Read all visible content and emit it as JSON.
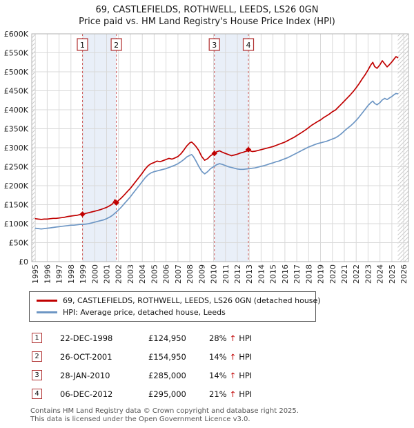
{
  "title": "69, CASTLEFIELDS, ROTHWELL, LEEDS, LS26 0GN",
  "subtitle": "Price paid vs. HM Land Registry's House Price Index (HPI)",
  "chart_data": {
    "type": "line",
    "title": "69, CASTLEFIELDS, ROTHWELL, LEEDS, LS26 0GN  Price paid vs. HPI",
    "unit": "GBP thousands",
    "x_range": [
      1994.7,
      2026.4
    ],
    "y_range": [
      0,
      600
    ],
    "x_ticks": [
      1995,
      1996,
      1997,
      1998,
      1999,
      2000,
      2001,
      2002,
      2003,
      2004,
      2005,
      2006,
      2007,
      2008,
      2009,
      2010,
      2011,
      2012,
      2013,
      2014,
      2015,
      2016,
      2017,
      2018,
      2019,
      2020,
      2021,
      2022,
      2023,
      2024,
      2025,
      2026
    ],
    "y_ticks": [
      0,
      50,
      100,
      150,
      200,
      250,
      300,
      350,
      400,
      450,
      500,
      550,
      600
    ],
    "y_tick_labels": [
      "£0",
      "£50K",
      "£100K",
      "£150K",
      "£200K",
      "£250K",
      "£300K",
      "£350K",
      "£400K",
      "£450K",
      "£500K",
      "£550K",
      "£600K"
    ],
    "grid": true,
    "legend_position": "bottom",
    "hatch_regions": [
      [
        1994.7,
        1995.0
      ],
      [
        2025.5,
        2026.4
      ]
    ],
    "bands": [
      [
        1998.97,
        2001.82
      ],
      [
        2010.07,
        2012.93
      ]
    ],
    "band_color": "#e9eff8",
    "dashed_line_color": "#d06060",
    "flags": [
      {
        "label": "1",
        "x": 1998.97
      },
      {
        "label": "2",
        "x": 2001.82
      },
      {
        "label": "3",
        "x": 2010.07
      },
      {
        "label": "4",
        "x": 2012.93
      }
    ],
    "markers": {
      "color": "#c00000",
      "points": [
        [
          1998.97,
          124.95
        ],
        [
          2001.82,
          154.95
        ],
        [
          2010.07,
          285
        ],
        [
          2012.93,
          295
        ]
      ]
    },
    "series": [
      {
        "id": "hpi",
        "name": "HPI: Average price, detached house, Leeds",
        "color": "#6d96c4",
        "points": [
          [
            1995.0,
            88
          ],
          [
            1995.25,
            87
          ],
          [
            1995.5,
            86
          ],
          [
            1995.75,
            87
          ],
          [
            1996.0,
            88
          ],
          [
            1996.25,
            89
          ],
          [
            1996.5,
            90
          ],
          [
            1996.75,
            91
          ],
          [
            1997.0,
            92
          ],
          [
            1997.25,
            93
          ],
          [
            1997.5,
            94
          ],
          [
            1997.75,
            95
          ],
          [
            1998.0,
            96
          ],
          [
            1998.25,
            96
          ],
          [
            1998.5,
            97
          ],
          [
            1998.75,
            98
          ],
          [
            1999.0,
            98
          ],
          [
            1999.25,
            99
          ],
          [
            1999.5,
            100
          ],
          [
            1999.75,
            102
          ],
          [
            2000.0,
            104
          ],
          [
            2000.25,
            106
          ],
          [
            2000.5,
            108
          ],
          [
            2000.75,
            110
          ],
          [
            2001.0,
            113
          ],
          [
            2001.25,
            117
          ],
          [
            2001.5,
            122
          ],
          [
            2001.75,
            129
          ],
          [
            2002.0,
            136
          ],
          [
            2002.25,
            144
          ],
          [
            2002.5,
            153
          ],
          [
            2002.75,
            162
          ],
          [
            2003.0,
            171
          ],
          [
            2003.25,
            181
          ],
          [
            2003.5,
            191
          ],
          [
            2003.75,
            201
          ],
          [
            2004.0,
            211
          ],
          [
            2004.25,
            221
          ],
          [
            2004.5,
            229
          ],
          [
            2004.75,
            234
          ],
          [
            2005.0,
            237
          ],
          [
            2005.25,
            239
          ],
          [
            2005.5,
            241
          ],
          [
            2005.75,
            243
          ],
          [
            2006.0,
            245
          ],
          [
            2006.25,
            248
          ],
          [
            2006.5,
            251
          ],
          [
            2006.75,
            254
          ],
          [
            2007.0,
            258
          ],
          [
            2007.25,
            263
          ],
          [
            2007.5,
            269
          ],
          [
            2007.75,
            276
          ],
          [
            2008.0,
            280
          ],
          [
            2008.15,
            282
          ],
          [
            2008.3,
            277
          ],
          [
            2008.5,
            266
          ],
          [
            2008.75,
            251
          ],
          [
            2009.0,
            238
          ],
          [
            2009.25,
            231
          ],
          [
            2009.5,
            237
          ],
          [
            2009.75,
            245
          ],
          [
            2010.0,
            250
          ],
          [
            2010.25,
            255
          ],
          [
            2010.5,
            258
          ],
          [
            2010.75,
            256
          ],
          [
            2011.0,
            253
          ],
          [
            2011.25,
            250
          ],
          [
            2011.5,
            248
          ],
          [
            2011.75,
            246
          ],
          [
            2012.0,
            244
          ],
          [
            2012.25,
            243
          ],
          [
            2012.5,
            243
          ],
          [
            2012.75,
            244
          ],
          [
            2013.0,
            245
          ],
          [
            2013.25,
            246
          ],
          [
            2013.5,
            247
          ],
          [
            2013.75,
            249
          ],
          [
            2014.0,
            251
          ],
          [
            2014.25,
            253
          ],
          [
            2014.5,
            255
          ],
          [
            2014.75,
            258
          ],
          [
            2015.0,
            260
          ],
          [
            2015.25,
            263
          ],
          [
            2015.5,
            265
          ],
          [
            2015.75,
            268
          ],
          [
            2016.0,
            271
          ],
          [
            2016.25,
            274
          ],
          [
            2016.5,
            278
          ],
          [
            2016.75,
            282
          ],
          [
            2017.0,
            286
          ],
          [
            2017.25,
            290
          ],
          [
            2017.5,
            294
          ],
          [
            2017.75,
            298
          ],
          [
            2018.0,
            302
          ],
          [
            2018.25,
            305
          ],
          [
            2018.5,
            308
          ],
          [
            2018.75,
            311
          ],
          [
            2019.0,
            313
          ],
          [
            2019.25,
            315
          ],
          [
            2019.5,
            317
          ],
          [
            2019.75,
            320
          ],
          [
            2020.0,
            323
          ],
          [
            2020.25,
            326
          ],
          [
            2020.5,
            331
          ],
          [
            2020.75,
            337
          ],
          [
            2021.0,
            344
          ],
          [
            2021.25,
            351
          ],
          [
            2021.5,
            357
          ],
          [
            2021.75,
            364
          ],
          [
            2022.0,
            372
          ],
          [
            2022.25,
            381
          ],
          [
            2022.5,
            391
          ],
          [
            2022.75,
            401
          ],
          [
            2023.0,
            411
          ],
          [
            2023.25,
            419
          ],
          [
            2023.4,
            423
          ],
          [
            2023.55,
            417
          ],
          [
            2023.75,
            413
          ],
          [
            2024.0,
            419
          ],
          [
            2024.2,
            426
          ],
          [
            2024.4,
            430
          ],
          [
            2024.6,
            427
          ],
          [
            2024.8,
            431
          ],
          [
            2025.0,
            435
          ],
          [
            2025.2,
            440
          ],
          [
            2025.35,
            443
          ],
          [
            2025.5,
            442
          ]
        ]
      },
      {
        "id": "property",
        "name": "69, CASTLEFIELDS, ROTHWELL, LEEDS, LS26 0GN (detached house)",
        "color": "#c00000",
        "points": [
          [
            1995.0,
            113
          ],
          [
            1995.25,
            112
          ],
          [
            1995.5,
            111
          ],
          [
            1995.75,
            112
          ],
          [
            1996.0,
            112
          ],
          [
            1996.25,
            113
          ],
          [
            1996.5,
            114
          ],
          [
            1996.75,
            114
          ],
          [
            1997.0,
            115
          ],
          [
            1997.25,
            116
          ],
          [
            1997.5,
            117
          ],
          [
            1997.75,
            119
          ],
          [
            1998.0,
            120
          ],
          [
            1998.25,
            121
          ],
          [
            1998.5,
            122
          ],
          [
            1998.75,
            124
          ],
          [
            1999.0,
            125
          ],
          [
            1999.25,
            127
          ],
          [
            1999.5,
            129
          ],
          [
            1999.75,
            131
          ],
          [
            2000.0,
            133
          ],
          [
            2000.25,
            135
          ],
          [
            2000.5,
            137
          ],
          [
            2000.75,
            140
          ],
          [
            2001.0,
            143
          ],
          [
            2001.25,
            147
          ],
          [
            2001.5,
            152
          ],
          [
            2001.7,
            163
          ],
          [
            2001.85,
            156
          ],
          [
            2002.0,
            161
          ],
          [
            2002.25,
            168
          ],
          [
            2002.5,
            176
          ],
          [
            2002.75,
            185
          ],
          [
            2003.0,
            193
          ],
          [
            2003.25,
            203
          ],
          [
            2003.5,
            213
          ],
          [
            2003.75,
            223
          ],
          [
            2004.0,
            233
          ],
          [
            2004.25,
            244
          ],
          [
            2004.5,
            253
          ],
          [
            2004.75,
            258
          ],
          [
            2005.0,
            261
          ],
          [
            2005.25,
            265
          ],
          [
            2005.5,
            263
          ],
          [
            2005.75,
            266
          ],
          [
            2006.0,
            269
          ],
          [
            2006.25,
            272
          ],
          [
            2006.5,
            270
          ],
          [
            2006.75,
            273
          ],
          [
            2007.0,
            277
          ],
          [
            2007.25,
            284
          ],
          [
            2007.5,
            294
          ],
          [
            2007.75,
            305
          ],
          [
            2008.0,
            313
          ],
          [
            2008.15,
            315
          ],
          [
            2008.3,
            311
          ],
          [
            2008.5,
            304
          ],
          [
            2008.75,
            293
          ],
          [
            2009.0,
            277
          ],
          [
            2009.25,
            267
          ],
          [
            2009.5,
            271
          ],
          [
            2009.75,
            279
          ],
          [
            2010.0,
            284
          ],
          [
            2010.25,
            289
          ],
          [
            2010.5,
            292
          ],
          [
            2010.75,
            288
          ],
          [
            2011.0,
            285
          ],
          [
            2011.25,
            282
          ],
          [
            2011.5,
            279
          ],
          [
            2011.75,
            281
          ],
          [
            2012.0,
            283
          ],
          [
            2012.25,
            286
          ],
          [
            2012.5,
            288
          ],
          [
            2012.75,
            291
          ],
          [
            2013.0,
            293
          ],
          [
            2013.25,
            290
          ],
          [
            2013.5,
            291
          ],
          [
            2013.75,
            293
          ],
          [
            2014.0,
            295
          ],
          [
            2014.25,
            297
          ],
          [
            2014.5,
            299
          ],
          [
            2014.75,
            301
          ],
          [
            2015.0,
            303
          ],
          [
            2015.25,
            306
          ],
          [
            2015.5,
            309
          ],
          [
            2015.75,
            312
          ],
          [
            2016.0,
            315
          ],
          [
            2016.25,
            319
          ],
          [
            2016.5,
            323
          ],
          [
            2016.75,
            327
          ],
          [
            2017.0,
            332
          ],
          [
            2017.25,
            337
          ],
          [
            2017.5,
            342
          ],
          [
            2017.75,
            347
          ],
          [
            2018.0,
            353
          ],
          [
            2018.25,
            359
          ],
          [
            2018.5,
            364
          ],
          [
            2018.75,
            369
          ],
          [
            2019.0,
            373
          ],
          [
            2019.25,
            379
          ],
          [
            2019.5,
            384
          ],
          [
            2019.75,
            389
          ],
          [
            2020.0,
            395
          ],
          [
            2020.25,
            399
          ],
          [
            2020.5,
            407
          ],
          [
            2020.75,
            415
          ],
          [
            2021.0,
            423
          ],
          [
            2021.25,
            431
          ],
          [
            2021.5,
            439
          ],
          [
            2021.75,
            448
          ],
          [
            2022.0,
            458
          ],
          [
            2022.25,
            469
          ],
          [
            2022.5,
            481
          ],
          [
            2022.75,
            492
          ],
          [
            2023.0,
            505
          ],
          [
            2023.25,
            519
          ],
          [
            2023.4,
            525
          ],
          [
            2023.55,
            514
          ],
          [
            2023.75,
            509
          ],
          [
            2024.0,
            519
          ],
          [
            2024.2,
            529
          ],
          [
            2024.4,
            521
          ],
          [
            2024.6,
            513
          ],
          [
            2024.8,
            519
          ],
          [
            2025.0,
            526
          ],
          [
            2025.2,
            534
          ],
          [
            2025.35,
            540
          ],
          [
            2025.5,
            537
          ]
        ]
      }
    ]
  },
  "legend": {
    "items": [
      {
        "label": "69, CASTLEFIELDS, ROTHWELL, LEEDS, LS26 0GN (detached house)",
        "color": "#c00000"
      },
      {
        "label": "HPI: Average price, detached house, Leeds",
        "color": "#6d96c4"
      }
    ]
  },
  "transactions": [
    {
      "num": "1",
      "date": "22-DEC-1998",
      "price": "£124,950",
      "pct": "28%",
      "arrow": "↑",
      "ref": "HPI"
    },
    {
      "num": "2",
      "date": "26-OCT-2001",
      "price": "£154,950",
      "pct": "14%",
      "arrow": "↑",
      "ref": "HPI"
    },
    {
      "num": "3",
      "date": "28-JAN-2010",
      "price": "£285,000",
      "pct": "14%",
      "arrow": "↑",
      "ref": "HPI"
    },
    {
      "num": "4",
      "date": "06-DEC-2012",
      "price": "£295,000",
      "pct": "21%",
      "arrow": "↑",
      "ref": "HPI"
    }
  ],
  "footer": {
    "line1": "Contains HM Land Registry data © Crown copyright and database right 2025.",
    "line2": "This data is licensed under the Open Government Licence v3.0."
  }
}
